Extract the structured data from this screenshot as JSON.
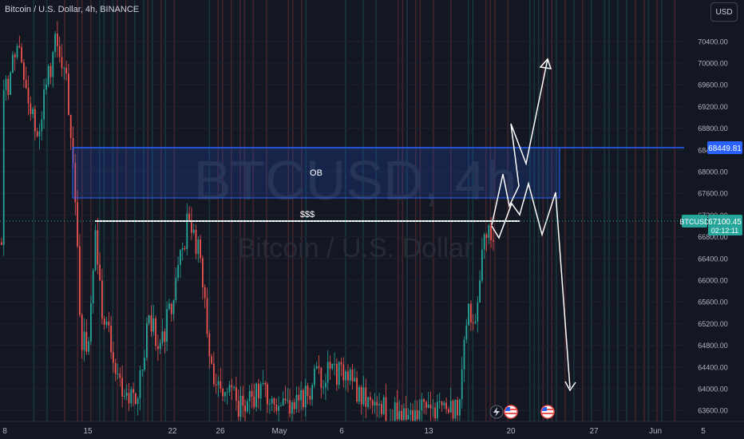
{
  "header": {
    "symbol_title": "Bitcoin / U.S. Dollar, 4h, BINANCE",
    "currency_button": "USD"
  },
  "watermark": {
    "ticker": "BTCUSD, 4h",
    "name": "Bitcoin / U.S. Dollar"
  },
  "price_axis": {
    "ticks": [
      "70400.00",
      "70000.00",
      "69600.00",
      "69200.00",
      "68800.00",
      "68400.00",
      "68000.00",
      "67600.00",
      "67200.00",
      "66800.00",
      "66400.00",
      "66000.00",
      "65600.00",
      "65200.00",
      "64800.00",
      "64400.00",
      "64000.00",
      "63600.00"
    ],
    "ob_level_label": "68449.81",
    "current_symbol": "BTCUSD",
    "current_price": "67100.45",
    "countdown": "02:12:11"
  },
  "time_axis": {
    "ticks": [
      "8",
      "15",
      "22",
      "26",
      "May",
      "6",
      "13",
      "20",
      "27",
      "Jun",
      "5"
    ]
  },
  "annotations": {
    "ob_label": "OB",
    "liquidity_label": "$$$"
  },
  "colors": {
    "background": "#131722",
    "up": "#26a69a",
    "down": "#ef5350",
    "ob_line": "#2962ff",
    "text": "#d1d4dc",
    "axis_text": "#b2b5be"
  },
  "icons": [
    "flash-icon",
    "us-flag-event-icon",
    "us-flag-event-icon"
  ]
}
